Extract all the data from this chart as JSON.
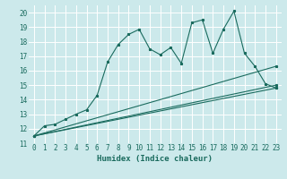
{
  "xlabel": "Humidex (Indice chaleur)",
  "bg_color": "#cce9eb",
  "grid_color": "#ffffff",
  "line_color": "#1a6b5e",
  "xlim": [
    -0.5,
    23.5
  ],
  "ylim": [
    11,
    20.5
  ],
  "xticks": [
    0,
    1,
    2,
    3,
    4,
    5,
    6,
    7,
    8,
    9,
    10,
    11,
    12,
    13,
    14,
    15,
    16,
    17,
    18,
    19,
    20,
    21,
    22,
    23
  ],
  "yticks": [
    11,
    12,
    13,
    14,
    15,
    16,
    17,
    18,
    19,
    20
  ],
  "line1_x": [
    0,
    1,
    2,
    3,
    4,
    5,
    6,
    7,
    8,
    9,
    10,
    11,
    12,
    13,
    14,
    15,
    16,
    17,
    18,
    19,
    20,
    21,
    22,
    23
  ],
  "line1_y": [
    11.5,
    12.2,
    12.3,
    12.65,
    13.0,
    13.3,
    14.3,
    16.6,
    17.8,
    18.5,
    18.85,
    17.5,
    17.1,
    17.6,
    16.5,
    19.3,
    19.5,
    17.2,
    18.85,
    20.1,
    17.2,
    16.3,
    15.1,
    14.8
  ],
  "line2_x": [
    0,
    23
  ],
  "line2_y": [
    11.5,
    16.3
  ],
  "line3_x": [
    0,
    23
  ],
  "line3_y": [
    11.5,
    15.0
  ],
  "line4_x": [
    0,
    23
  ],
  "line4_y": [
    11.5,
    14.8
  ],
  "xlabel_fontsize": 6.5,
  "tick_fontsize": 5.5
}
